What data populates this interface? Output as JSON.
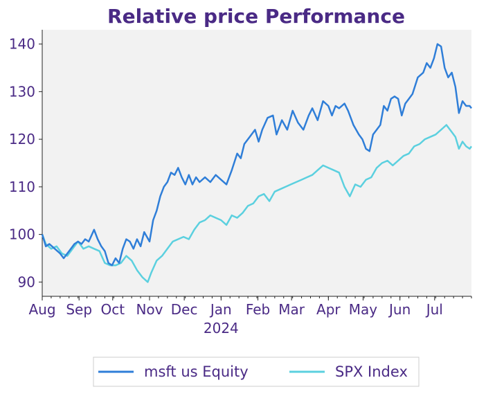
{
  "chart_data": {
    "type": "line",
    "title": "Relative price Performance",
    "xlabel": "",
    "ylabel": "",
    "ylim": [
      87,
      143
    ],
    "x_range": [
      0,
      12
    ],
    "grid": false,
    "legend_position": "bottom-center",
    "y_ticks": [
      90,
      100,
      110,
      120,
      130,
      140
    ],
    "x_ticks": [
      {
        "pos": 0.0,
        "label": "Aug"
      },
      {
        "pos": 1.03,
        "label": "Sep"
      },
      {
        "pos": 1.97,
        "label": "Oct"
      },
      {
        "pos": 3.0,
        "label": "Nov"
      },
      {
        "pos": 3.97,
        "label": "Dec"
      },
      {
        "pos": 5.0,
        "label": "Jan"
      },
      {
        "pos": 6.03,
        "label": "Feb"
      },
      {
        "pos": 6.97,
        "label": "Mar"
      },
      {
        "pos": 8.0,
        "label": "Apr"
      },
      {
        "pos": 8.97,
        "label": "May"
      },
      {
        "pos": 10.0,
        "label": "Jun"
      },
      {
        "pos": 10.97,
        "label": "Jul"
      }
    ],
    "x_sublabel": {
      "pos": 5.0,
      "label": "2024"
    },
    "series": [
      {
        "name": "msft us Equity",
        "color": "#2f7ed8",
        "x": [
          0,
          0.1,
          0.2,
          0.35,
          0.5,
          0.6,
          0.75,
          0.9,
          1.0,
          1.1,
          1.2,
          1.3,
          1.45,
          1.55,
          1.65,
          1.75,
          1.85,
          1.95,
          2.05,
          2.15,
          2.25,
          2.35,
          2.45,
          2.55,
          2.65,
          2.75,
          2.85,
          3.0,
          3.1,
          3.2,
          3.3,
          3.4,
          3.5,
          3.6,
          3.7,
          3.8,
          3.9,
          4.0,
          4.1,
          4.2,
          4.3,
          4.4,
          4.55,
          4.7,
          4.85,
          5.0,
          5.15,
          5.3,
          5.45,
          5.55,
          5.65,
          5.8,
          5.95,
          6.05,
          6.15,
          6.3,
          6.45,
          6.55,
          6.7,
          6.85,
          7.0,
          7.15,
          7.3,
          7.45,
          7.55,
          7.7,
          7.85,
          8.0,
          8.1,
          8.2,
          8.3,
          8.45,
          8.55,
          8.7,
          8.85,
          8.95,
          9.05,
          9.15,
          9.25,
          9.35,
          9.45,
          9.55,
          9.65,
          9.75,
          9.85,
          9.95,
          10.05,
          10.15,
          10.25,
          10.35,
          10.5,
          10.65,
          10.75,
          10.85,
          10.95,
          11.05,
          11.15,
          11.25,
          11.35,
          11.45,
          11.55,
          11.65,
          11.75,
          11.85,
          11.95,
          12.0
        ],
        "values": [
          100.0,
          97.5,
          98.0,
          97.0,
          96.0,
          95.0,
          96.5,
          98.0,
          98.5,
          98.0,
          99.0,
          98.5,
          101.0,
          99.0,
          97.5,
          96.5,
          94.0,
          93.5,
          95.0,
          94.0,
          97.0,
          99.0,
          98.5,
          97.0,
          99.0,
          97.5,
          100.5,
          98.5,
          103.0,
          105.0,
          108.0,
          110.0,
          111.0,
          113.0,
          112.5,
          114.0,
          112.0,
          110.5,
          112.5,
          110.5,
          112.0,
          111.0,
          112.0,
          111.0,
          112.5,
          111.5,
          110.5,
          113.5,
          117.0,
          116.0,
          119.0,
          120.5,
          122.0,
          119.5,
          122.0,
          124.5,
          125.0,
          121.0,
          124.0,
          122.0,
          126.0,
          123.5,
          122.0,
          125.0,
          126.5,
          124.0,
          128.0,
          127.0,
          125.0,
          127.0,
          126.5,
          127.5,
          126.0,
          123.0,
          121.0,
          120.0,
          118.0,
          117.5,
          121.0,
          122.0,
          123.0,
          127.0,
          126.0,
          128.5,
          129.0,
          128.5,
          125.0,
          127.5,
          128.5,
          129.5,
          133.0,
          134.0,
          136.0,
          135.0,
          137.0,
          140.0,
          139.5,
          135.0,
          133.0,
          134.0,
          131.0,
          125.5,
          128.0,
          127.0,
          127.0,
          126.5
        ],
        "visible_range_note": "msft series plotted as relative performance index"
      },
      {
        "name": "SPX Index",
        "color": "#5bd0df",
        "x": [
          0,
          0.1,
          0.25,
          0.4,
          0.55,
          0.7,
          0.85,
          1.0,
          1.15,
          1.3,
          1.45,
          1.6,
          1.75,
          1.9,
          2.05,
          2.2,
          2.35,
          2.5,
          2.65,
          2.8,
          2.95,
          3.05,
          3.2,
          3.35,
          3.5,
          3.65,
          3.8,
          3.95,
          4.1,
          4.25,
          4.4,
          4.55,
          4.7,
          4.85,
          5.0,
          5.15,
          5.3,
          5.45,
          5.6,
          5.75,
          5.9,
          6.05,
          6.2,
          6.35,
          6.5,
          6.65,
          6.8,
          6.95,
          7.1,
          7.25,
          7.4,
          7.55,
          7.7,
          7.85,
          8.0,
          8.15,
          8.3,
          8.45,
          8.6,
          8.75,
          8.9,
          9.05,
          9.2,
          9.35,
          9.5,
          9.65,
          9.8,
          9.95,
          10.1,
          10.25,
          10.4,
          10.55,
          10.7,
          10.85,
          11.0,
          11.15,
          11.3,
          11.45,
          11.55,
          11.65,
          11.75,
          11.85,
          11.95,
          12.0
        ],
        "values": [
          100.0,
          98.0,
          97.0,
          97.5,
          96.0,
          95.5,
          97.0,
          98.5,
          97.0,
          97.5,
          97.0,
          96.5,
          94.0,
          93.5,
          93.5,
          94.0,
          95.5,
          94.5,
          92.5,
          91.0,
          90.0,
          92.0,
          94.5,
          95.5,
          97.0,
          98.5,
          99.0,
          99.5,
          99.0,
          101.0,
          102.5,
          103.0,
          104.0,
          103.5,
          103.0,
          102.0,
          104.0,
          103.5,
          104.5,
          106.0,
          106.5,
          108.0,
          108.5,
          107.0,
          109.0,
          109.5,
          110.0,
          110.5,
          111.0,
          111.5,
          112.0,
          112.5,
          113.5,
          114.5,
          114.0,
          113.5,
          113.0,
          110.0,
          108.0,
          110.5,
          110.0,
          111.5,
          112.0,
          114.0,
          115.0,
          115.5,
          114.5,
          115.5,
          116.5,
          117.0,
          118.5,
          119.0,
          120.0,
          120.5,
          121.0,
          122.0,
          123.0,
          121.5,
          120.5,
          118.0,
          119.5,
          118.5,
          118.0,
          118.5
        ],
        "visible_range_note": "SPX series plotted as relative performance index"
      }
    ]
  },
  "colors": {
    "title": "#4a2a85",
    "tick": "#4a2a85",
    "plot_bg": "#f2f2f2",
    "axis": "#222222"
  }
}
